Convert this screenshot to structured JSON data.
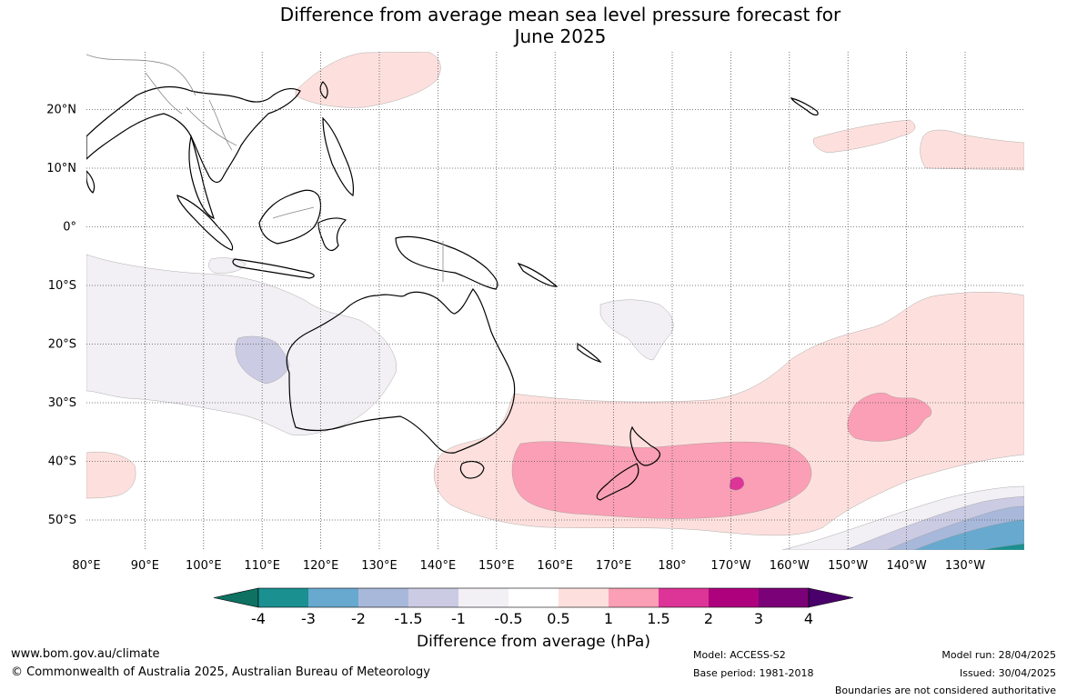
{
  "title_line1": "Difference from average mean sea level pressure forecast for",
  "title_line2": "June 2025",
  "map": {
    "lon_labels": [
      "80°E",
      "90°E",
      "100°E",
      "110°E",
      "120°E",
      "130°E",
      "140°E",
      "150°E",
      "160°E",
      "170°E",
      "180°",
      "170°W",
      "160°W",
      "150°W",
      "140°W",
      "130°W"
    ],
    "lat_labels": [
      "20°N",
      "10°N",
      "0°",
      "10°S",
      "20°S",
      "30°S",
      "40°S",
      "50°S"
    ],
    "colors": {
      "land_outline": "#000000",
      "border_grey": "#888888",
      "pos_0_5_1": "#fde0dd",
      "pos_1_1_5": "#fa9fb5",
      "pos_1_5_2": "#dd3497",
      "neg_0_5_1": "#f2eff5",
      "neg_1_1_5": "#cbcbe3",
      "neg_1_5_2": "#a8b8db",
      "neg_2_3": "#67a9cf",
      "neg_3_4": "#1a9091"
    }
  },
  "colorbar": {
    "ticks": [
      "-4",
      "-3",
      "-2",
      "-1.5",
      "-1",
      "-0.5",
      "0.5",
      "1",
      "1.5",
      "2",
      "3",
      "4"
    ],
    "colors": [
      "#0e7162",
      "#1a9091",
      "#67a9cf",
      "#a8b8db",
      "#cbcbe3",
      "#f2eff5",
      "#ffffff",
      "#fde0dd",
      "#fa9fb5",
      "#dd3497",
      "#ae017e",
      "#7a0177",
      "#49006a"
    ],
    "label": "Difference from average (hPa)"
  },
  "footer": {
    "site": "www.bom.gov.au/climate",
    "copyright": "© Commonwealth of Australia 2025, Australian Bureau of Meteorology",
    "model": "Model: ACCESS-S2",
    "base_period": "Base period: 1981-2018",
    "model_run": "Model run: 28/04/2025",
    "issued": "Issued: 30/04/2025",
    "disclaimer": "Boundaries are not considered authoritative"
  }
}
